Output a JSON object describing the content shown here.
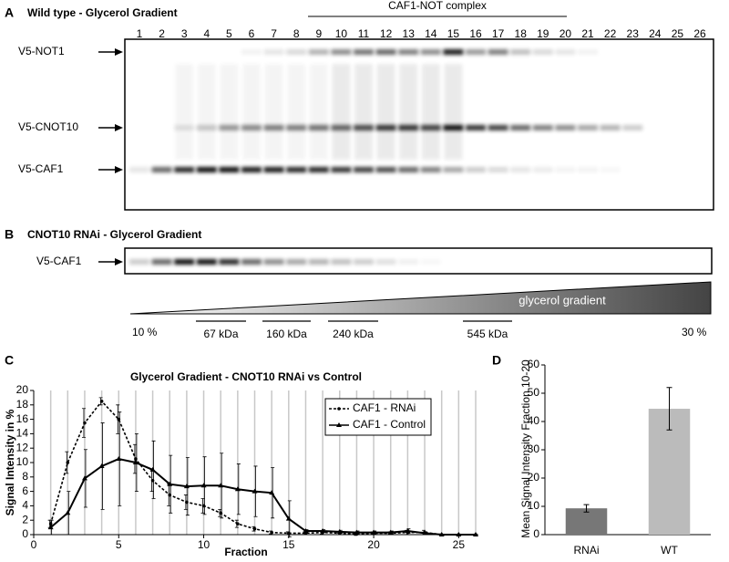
{
  "panels": {
    "a": {
      "label": "A",
      "title": "Wild type - Glycerol Gradient",
      "complex": "CAF1-NOT complex",
      "lanes": [
        "1",
        "2",
        "3",
        "4",
        "5",
        "6",
        "7",
        "8",
        "9",
        "10",
        "11",
        "12",
        "13",
        "14",
        "15",
        "16",
        "17",
        "18",
        "19",
        "20",
        "21",
        "22",
        "23",
        "24",
        "25",
        "26"
      ],
      "bands": [
        "V5-NOT1",
        "V5-CNOT10",
        "V5-CAF1"
      ]
    },
    "b": {
      "label": "B",
      "title": "CNOT10 RNAi - Glycerol Gradient",
      "bands": [
        "V5-CAF1"
      ],
      "gradient": "glycerol gradient",
      "gradient_start": "10 %",
      "gradient_end": "30 %",
      "markers": [
        "67 kDa",
        "160 kDa",
        "240 kDa",
        "545 kDa"
      ]
    },
    "c": {
      "label": "C"
    },
    "d": {
      "label": "D"
    }
  },
  "chart_data": [
    {
      "type": "line",
      "title": "Glycerol Gradient - CNOT10 RNAi vs Control",
      "x_label": "Fraction",
      "y_label": "Signal Intensity in %",
      "x": [
        1,
        2,
        3,
        4,
        5,
        6,
        7,
        8,
        9,
        10,
        11,
        12,
        13,
        14,
        15,
        16,
        17,
        18,
        19,
        20,
        21,
        22,
        23,
        24,
        25,
        26
      ],
      "xlim": [
        0,
        26
      ],
      "xticks": [
        0,
        5,
        10,
        15,
        20,
        25
      ],
      "ylim": [
        0,
        20
      ],
      "yticks": [
        0,
        2,
        4,
        6,
        8,
        10,
        12,
        14,
        16,
        18,
        20
      ],
      "grid": "x",
      "legend": "top-right",
      "series": [
        {
          "name": "CAF1 - RNAi",
          "color": "#000000",
          "line_style": "dashed",
          "marker": "circle",
          "values": [
            1.5,
            10,
            15.5,
            18.5,
            16,
            10.5,
            7.5,
            5.5,
            4.5,
            4,
            3,
            1.5,
            0.8,
            0.3,
            0.2,
            0.2,
            0.3,
            0.2,
            0.1,
            0.2,
            0.2,
            0.3,
            0.3,
            0,
            0,
            0
          ],
          "errors": [
            0.5,
            1.5,
            2,
            0.5,
            2,
            2,
            1.5,
            1.5,
            1,
            1,
            0.5,
            0.5,
            0.3,
            0.2,
            0.2,
            0.2,
            0.2,
            0.2,
            0.2,
            0.2,
            0.2,
            0.3,
            0.3,
            0,
            0,
            0
          ]
        },
        {
          "name": "CAF1 - Control",
          "color": "#000000",
          "line_style": "solid",
          "marker": "triangle",
          "values": [
            1,
            3,
            7.8,
            9.5,
            10.5,
            10,
            9,
            7,
            6.7,
            6.8,
            6.8,
            6.3,
            6,
            5.8,
            2.2,
            0.5,
            0.5,
            0.4,
            0.3,
            0.3,
            0.3,
            0.5,
            0.2,
            0,
            0,
            0
          ],
          "errors": [
            1,
            3,
            4,
            6,
            6.5,
            4,
            4,
            4,
            4,
            4,
            4.5,
            3.5,
            3.5,
            3.5,
            2.5,
            0.2,
            0.2,
            0.2,
            0.2,
            0.2,
            0.2,
            0.3,
            0.2,
            0,
            0,
            0
          ]
        }
      ]
    },
    {
      "type": "bar",
      "y_label": "Mean Signal Intensity Fraction 10-20",
      "categories": [
        "RNAi",
        "WT"
      ],
      "values": [
        9.3,
        44.5
      ],
      "errors": [
        1.3,
        7.5
      ],
      "colors": [
        "#777777",
        "#bbbbbb"
      ],
      "ylim": [
        0,
        60
      ],
      "yticks": [
        0,
        10,
        20,
        30,
        40,
        50,
        60
      ]
    }
  ]
}
